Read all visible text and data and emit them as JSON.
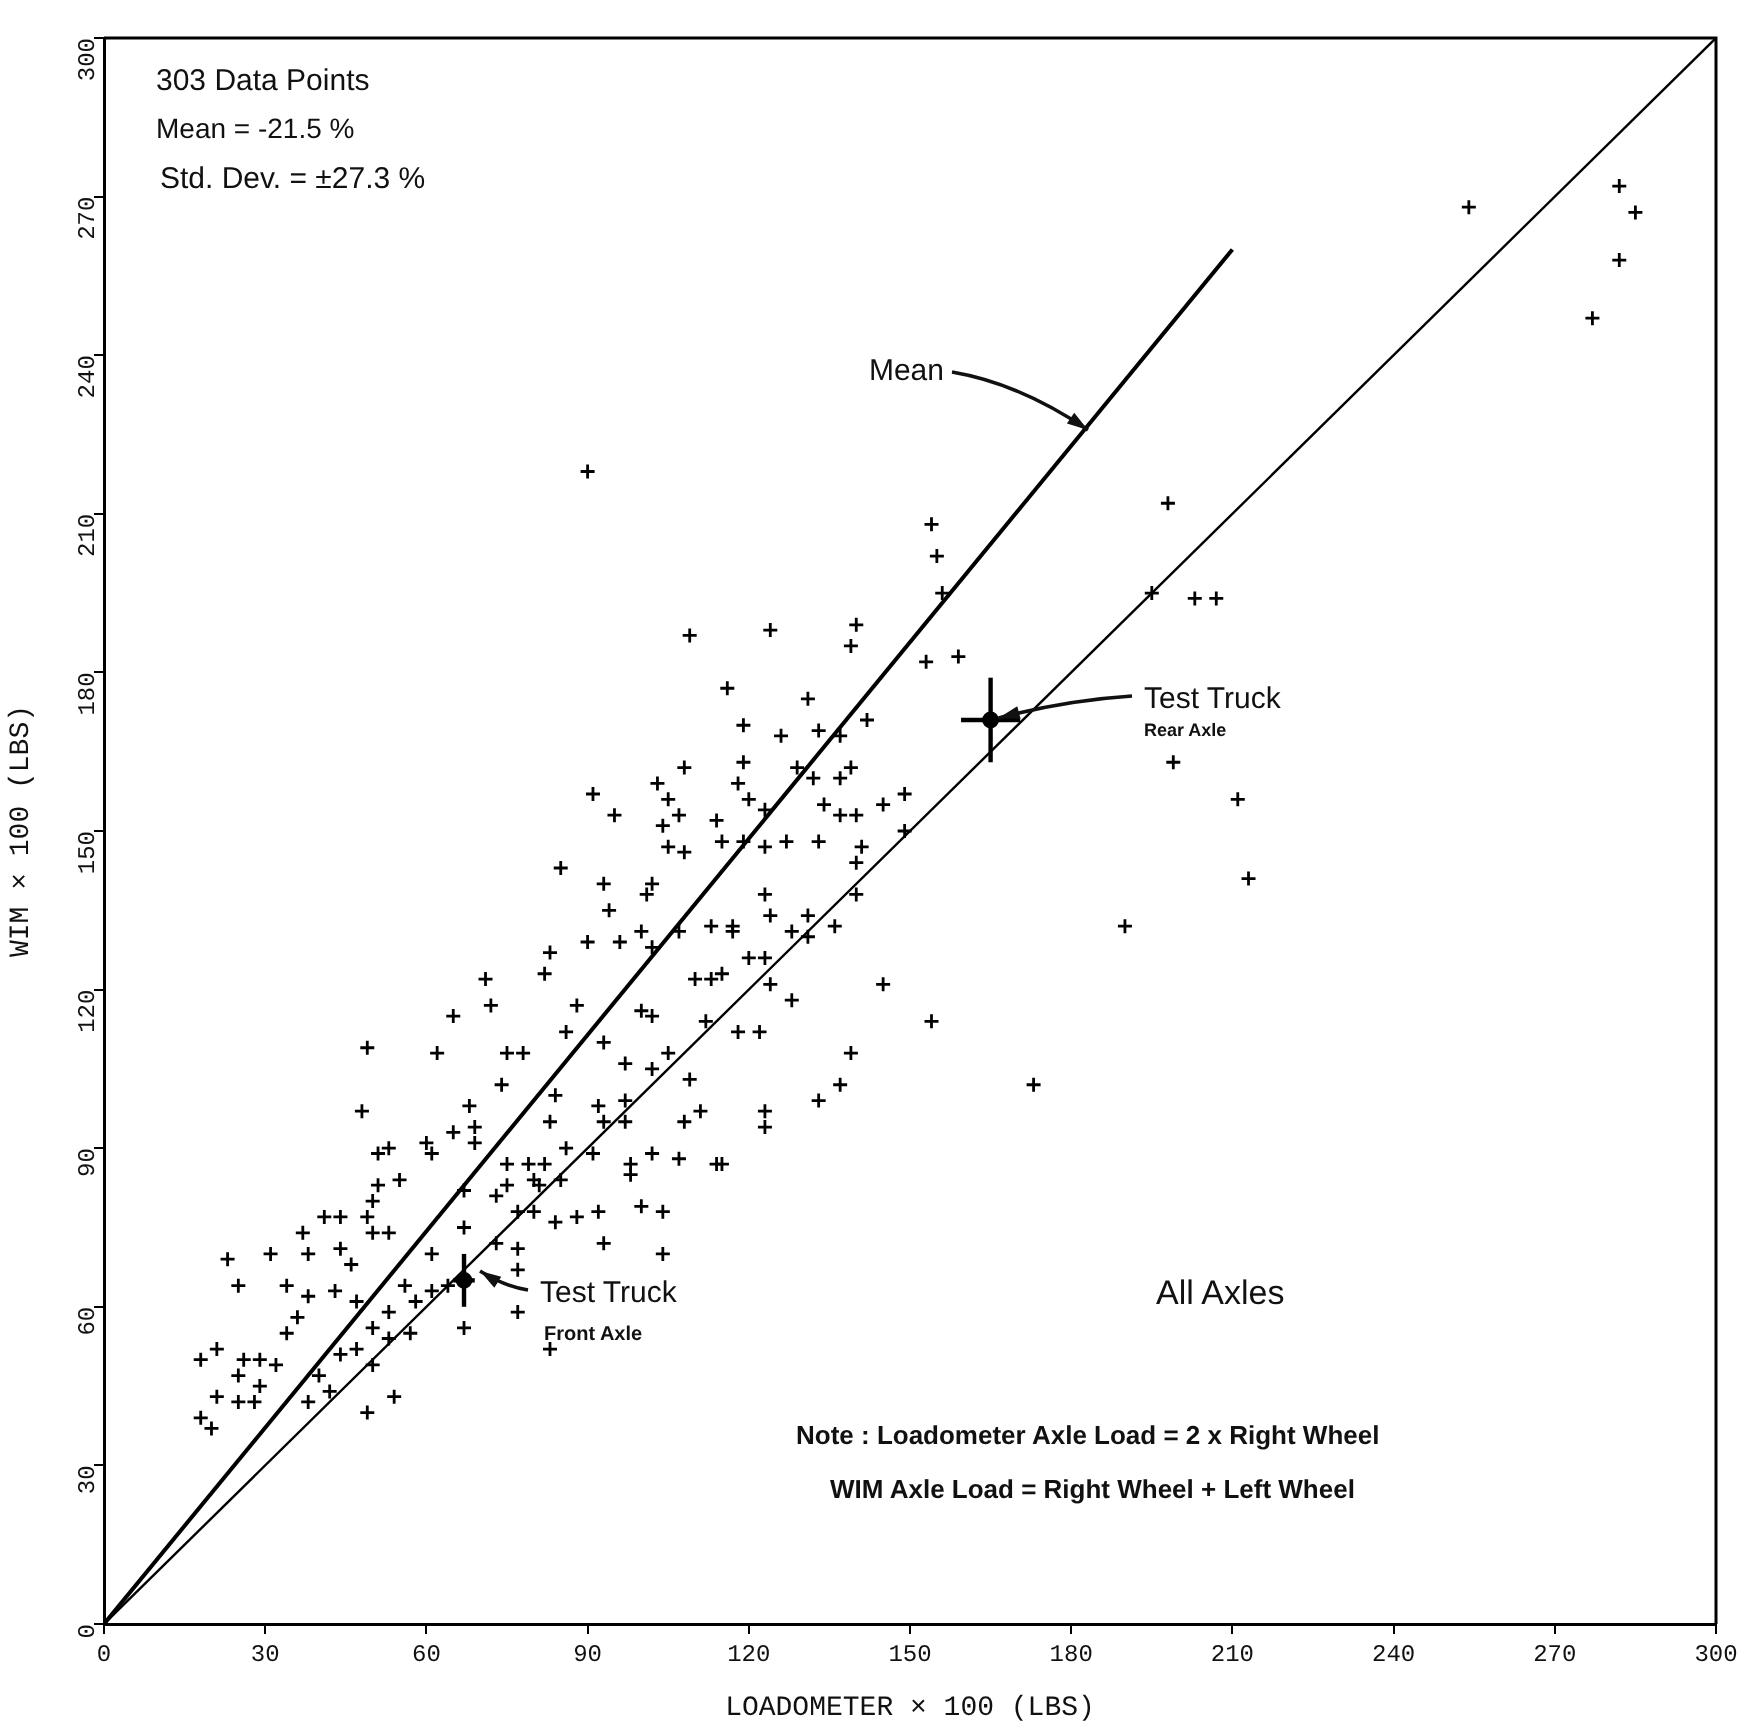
{
  "chart_data": {
    "type": "scatter",
    "xlabel": "LOADOMETER × 100 (LBS)",
    "ylabel": "WIM × 100 (LBS)",
    "xlim": [
      0,
      300
    ],
    "xticks": [
      0,
      30,
      60,
      90,
      120,
      150,
      180,
      210,
      240,
      270,
      300
    ],
    "ylim": [
      0,
      300
    ],
    "yticks": [
      0,
      30,
      60,
      90,
      120,
      150,
      180,
      210,
      240,
      270,
      300
    ],
    "grid": false,
    "marker": "cross",
    "series": [
      {
        "type": "scatter",
        "color": "#000000",
        "x": [
          254,
          282,
          285,
          282,
          277,
          198,
          195,
          203,
          207,
          199,
          211,
          213,
          190,
          173,
          154,
          155,
          156,
          153,
          159,
          149,
          145,
          149,
          145,
          154,
          109,
          124,
          140,
          139,
          116,
          131,
          119,
          126,
          133,
          137,
          142,
          119,
          108,
          103,
          118,
          129,
          132,
          137,
          139,
          91,
          105,
          120,
          134,
          95,
          107,
          104,
          114,
          123,
          137,
          140,
          105,
          108,
          115,
          119,
          123,
          127,
          133,
          140,
          141,
          90,
          85,
          93,
          102,
          101,
          94,
          123,
          124,
          131,
          128,
          131,
          136,
          140,
          117,
          113,
          117,
          90,
          96,
          100,
          102,
          107,
          83,
          82,
          71,
          72,
          110,
          113,
          115,
          120,
          123,
          124,
          128,
          88,
          100,
          102,
          86,
          93,
          97,
          102,
          105,
          109,
          112,
          118,
          122,
          139,
          137,
          133,
          123,
          123,
          75,
          78,
          74,
          84,
          83,
          92,
          97,
          93,
          97,
          108,
          111,
          86,
          91,
          98,
          102,
          107,
          114,
          115,
          98,
          75,
          79,
          82,
          80,
          85,
          81,
          75,
          68,
          69,
          69,
          73,
          77,
          80,
          84,
          88,
          92,
          100,
          104,
          93,
          104,
          67,
          73,
          77,
          77,
          77,
          67,
          83,
          65,
          49,
          62,
          48,
          60,
          61,
          65,
          51,
          53,
          55,
          51,
          50,
          41,
          44,
          49,
          50,
          53,
          37,
          44,
          46,
          38,
          31,
          23,
          34,
          25,
          38,
          43,
          36,
          34,
          47,
          56,
          58,
          61,
          64,
          53,
          50,
          53,
          57,
          47,
          50,
          44,
          21,
          18,
          26,
          29,
          32,
          25,
          29,
          21,
          25,
          28,
          18,
          20,
          38,
          42,
          40,
          49,
          54,
          67,
          61
        ],
        "values": [
          268,
          272,
          267,
          258,
          247,
          212,
          195,
          194,
          194,
          163,
          156,
          141,
          132,
          102,
          208,
          202,
          195,
          182,
          183,
          157,
          155,
          150,
          121,
          114,
          187,
          188,
          189,
          185,
          177,
          175,
          170,
          168,
          169,
          168,
          171,
          163,
          162,
          159,
          159,
          162,
          160,
          160,
          162,
          157,
          156,
          156,
          155,
          153,
          153,
          151,
          152,
          154,
          153,
          153,
          147,
          146,
          148,
          148,
          147,
          148,
          148,
          144,
          147,
          218,
          143,
          140,
          140,
          138,
          135,
          138,
          134,
          134,
          131,
          130,
          132,
          138,
          132,
          132,
          131,
          129,
          129,
          131,
          128,
          131,
          127,
          123,
          122,
          117,
          122,
          122,
          123,
          126,
          126,
          121,
          118,
          117,
          116,
          115,
          112,
          110,
          106,
          105,
          108,
          103,
          114,
          112,
          112,
          108,
          102,
          99,
          97,
          94,
          108,
          108,
          102,
          100,
          95,
          98,
          99,
          95,
          95,
          95,
          97,
          90,
          89,
          87,
          89,
          88,
          87,
          87,
          85,
          87,
          87,
          87,
          84,
          84,
          83,
          83,
          98,
          94,
          91,
          81,
          78,
          78,
          76,
          77,
          78,
          79,
          78,
          72,
          70,
          75,
          72,
          71,
          67,
          59,
          56,
          52,
          115,
          109,
          108,
          97,
          91,
          89,
          93,
          89,
          90,
          84,
          83,
          80,
          77,
          77,
          77,
          74,
          74,
          74,
          71,
          68,
          70,
          70,
          69,
          64,
          64,
          62,
          63,
          58,
          55,
          61,
          64,
          61,
          63,
          64,
          59,
          56,
          54,
          55,
          52,
          49,
          51,
          52,
          50,
          50,
          50,
          49,
          47,
          45,
          43,
          42,
          42,
          39,
          37,
          42,
          44,
          47,
          40,
          43,
          82,
          70
        ]
      },
      {
        "type": "line",
        "color": "#000000",
        "marker": "none",
        "x": [
          0,
          210
        ],
        "values": [
          0,
          260
        ]
      },
      {
        "type": "line",
        "color": "#000000",
        "marker": "none",
        "x": [
          0,
          300
        ],
        "values": [
          0,
          300
        ]
      },
      {
        "type": "scatter",
        "color": "#000000",
        "marker": "circle",
        "x": [
          67,
          165
        ],
        "values": [
          65,
          171
        ],
        "errors": [
          5,
          8
        ],
        "xerrors": [
          2,
          5.5
        ]
      }
    ],
    "annotations": [
      "303 Data Points",
      "Mean = -21.5 %",
      "Std. Dev. = ±27.3 %",
      {
        "text": "Mean",
        "x": 182,
        "y": 227
      },
      {
        "text": "Test Truck",
        "x": 67,
        "y": 66
      },
      "Front Axle",
      {
        "text": "Test Truck",
        "x": 165,
        "y": 171
      },
      "Rear Axle",
      "All Axles",
      "Note : Loadometer Axle Load = 2 x Right Wheel",
      "WIM Axle Load = Right Wheel + Left Wheel"
    ]
  }
}
